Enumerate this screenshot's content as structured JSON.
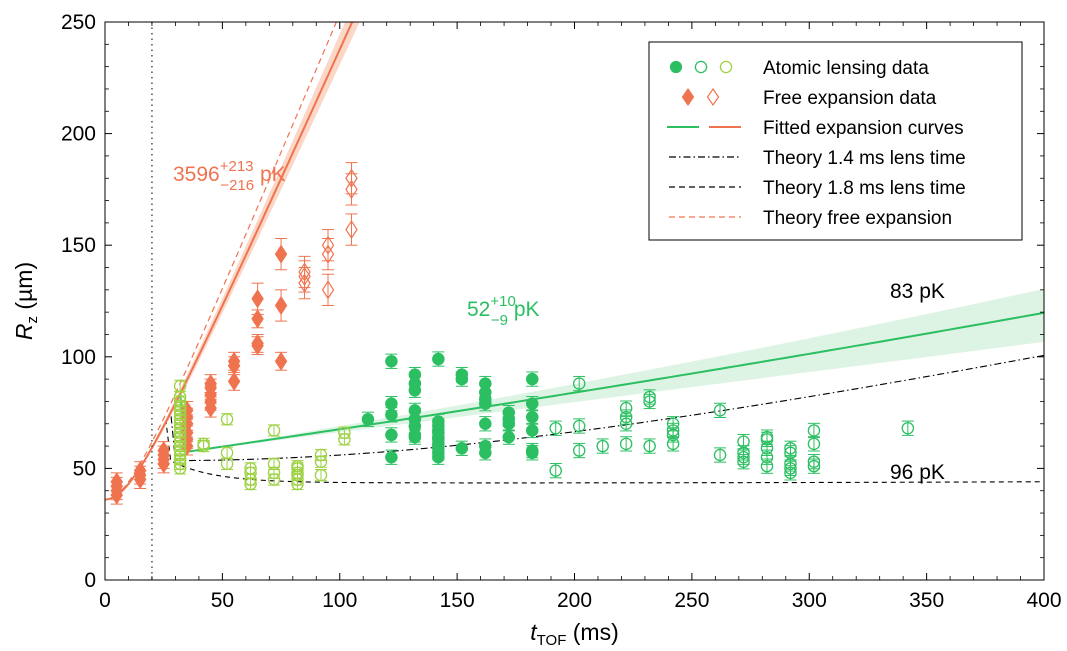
{
  "chart_data": {
    "type": "scatter",
    "xlabel": {
      "main": "t",
      "sub": "TOF",
      "unit": " (ms)"
    },
    "ylabel": {
      "main": "R",
      "sub": "z",
      "unit": " (µm)"
    },
    "xlim": [
      0,
      400
    ],
    "ylim": [
      0,
      250
    ],
    "xticks": [
      0,
      50,
      100,
      150,
      200,
      250,
      300,
      350,
      400
    ],
    "yticks": [
      0,
      50,
      100,
      150,
      200,
      250
    ],
    "lens_time_marker_x": 20,
    "grid": false,
    "legend_position": "top-right",
    "colors": {
      "free": "#f0734f",
      "free_band": "#f9cdb8",
      "lens": "#2bbf62",
      "lens_light": "#9ed244",
      "lens_band": "#d9f2e0",
      "theory": "#000000"
    },
    "legend": [
      {
        "key": "atomic",
        "label": "Atomic lensing data"
      },
      {
        "key": "free",
        "label": "Free expansion data"
      },
      {
        "key": "fit",
        "label": "Fitted expansion curves"
      },
      {
        "key": "th14",
        "label": "Theory 1.4 ms lens time"
      },
      {
        "key": "th18",
        "label": "Theory 1.8 ms lens time"
      },
      {
        "key": "thfree",
        "label": "Theory free expansion"
      }
    ],
    "annotations": {
      "free_temp": {
        "base": "3596",
        "sup": "+213",
        "sub": "−216",
        "unit": " pK"
      },
      "lens_temp": {
        "base": "52",
        "sup": "+10",
        "sub": "−9",
        "unit": " pK"
      },
      "t83": "83 pK",
      "t96": "96 pK"
    },
    "series": [
      {
        "name": "Free expansion data",
        "marker": "diamond-filled",
        "points": [
          [
            5,
            38
          ],
          [
            5,
            40
          ],
          [
            5,
            42
          ],
          [
            5,
            44
          ],
          [
            15,
            45
          ],
          [
            15,
            47
          ],
          [
            15,
            49
          ],
          [
            25,
            52
          ],
          [
            25,
            54
          ],
          [
            25,
            56
          ],
          [
            25,
            58
          ],
          [
            35,
            60
          ],
          [
            35,
            63
          ],
          [
            35,
            66
          ],
          [
            35,
            70
          ],
          [
            35,
            73
          ],
          [
            35,
            76
          ],
          [
            45,
            77
          ],
          [
            45,
            80
          ],
          [
            45,
            83
          ],
          [
            45,
            86
          ],
          [
            45,
            88
          ],
          [
            55,
            89
          ],
          [
            55,
            96
          ],
          [
            55,
            98
          ],
          [
            65,
            105
          ],
          [
            65,
            106
          ],
          [
            65,
            117
          ],
          [
            65,
            126
          ],
          [
            75,
            98
          ],
          [
            75,
            123
          ],
          [
            75,
            146
          ]
        ]
      },
      {
        "name": "Free expansion data",
        "marker": "diamond-open",
        "points": [
          [
            85,
            133
          ],
          [
            85,
            136
          ],
          [
            85,
            138
          ],
          [
            95,
            130
          ],
          [
            95,
            146
          ],
          [
            95,
            150
          ],
          [
            105,
            157
          ],
          [
            105,
            175
          ],
          [
            105,
            180
          ]
        ]
      },
      {
        "name": "Atomic lensing data",
        "marker": "circle-filled",
        "points": [
          [
            112,
            72
          ],
          [
            122,
            55
          ],
          [
            122,
            65
          ],
          [
            122,
            74
          ],
          [
            122,
            79
          ],
          [
            122,
            98
          ],
          [
            132,
            64
          ],
          [
            132,
            65
          ],
          [
            132,
            69
          ],
          [
            132,
            72
          ],
          [
            132,
            76
          ],
          [
            132,
            85
          ],
          [
            132,
            88
          ],
          [
            132,
            92
          ],
          [
            142,
            55
          ],
          [
            142,
            57
          ],
          [
            142,
            59
          ],
          [
            142,
            60
          ],
          [
            142,
            61
          ],
          [
            142,
            63
          ],
          [
            142,
            64
          ],
          [
            142,
            66
          ],
          [
            142,
            67
          ],
          [
            142,
            69
          ],
          [
            142,
            71
          ],
          [
            142,
            99
          ],
          [
            152,
            59
          ],
          [
            152,
            90
          ],
          [
            152,
            92
          ],
          [
            162,
            57
          ],
          [
            162,
            60
          ],
          [
            162,
            70
          ],
          [
            162,
            79
          ],
          [
            162,
            81
          ],
          [
            162,
            84
          ],
          [
            162,
            88
          ],
          [
            172,
            64
          ],
          [
            172,
            70
          ],
          [
            172,
            72
          ],
          [
            172,
            75
          ],
          [
            182,
            57
          ],
          [
            182,
            58
          ],
          [
            182,
            67
          ],
          [
            182,
            73
          ],
          [
            182,
            79
          ],
          [
            182,
            90
          ]
        ]
      },
      {
        "name": "Atomic lensing data",
        "marker": "circle-open",
        "points": [
          [
            192,
            49
          ],
          [
            192,
            68
          ],
          [
            202,
            58
          ],
          [
            202,
            69
          ],
          [
            202,
            88
          ],
          [
            212,
            60
          ],
          [
            222,
            61
          ],
          [
            222,
            70
          ],
          [
            222,
            73
          ],
          [
            222,
            77
          ],
          [
            232,
            60
          ],
          [
            232,
            80
          ],
          [
            232,
            82
          ],
          [
            242,
            61
          ],
          [
            242,
            65
          ],
          [
            242,
            67
          ],
          [
            242,
            70
          ],
          [
            262,
            56
          ],
          [
            262,
            76
          ],
          [
            272,
            53
          ],
          [
            272,
            55
          ],
          [
            272,
            57
          ],
          [
            272,
            62
          ],
          [
            282,
            51
          ],
          [
            282,
            55
          ],
          [
            282,
            59
          ],
          [
            282,
            63
          ],
          [
            282,
            64
          ],
          [
            292,
            48
          ],
          [
            292,
            50
          ],
          [
            292,
            52
          ],
          [
            292,
            57
          ],
          [
            292,
            59
          ],
          [
            302,
            51
          ],
          [
            302,
            53
          ],
          [
            302,
            61
          ],
          [
            302,
            67
          ],
          [
            342,
            68
          ]
        ]
      },
      {
        "name": "Atomic lensing data",
        "marker": "circle-open-light",
        "points": [
          [
            32,
            50
          ],
          [
            32,
            52
          ],
          [
            32,
            54
          ],
          [
            32,
            56
          ],
          [
            32,
            58
          ],
          [
            32,
            60
          ],
          [
            32,
            62
          ],
          [
            32,
            64
          ],
          [
            32,
            66
          ],
          [
            32,
            68
          ],
          [
            32,
            70
          ],
          [
            32,
            72
          ],
          [
            32,
            74
          ],
          [
            32,
            76
          ],
          [
            32,
            78
          ],
          [
            32,
            80
          ],
          [
            32,
            82
          ],
          [
            32,
            87
          ],
          [
            42,
            60
          ],
          [
            42,
            61
          ],
          [
            52,
            52
          ],
          [
            52,
            57
          ],
          [
            52,
            72
          ],
          [
            62,
            43
          ],
          [
            62,
            45
          ],
          [
            62,
            48
          ],
          [
            62,
            50
          ],
          [
            72,
            45
          ],
          [
            72,
            48
          ],
          [
            72,
            52
          ],
          [
            72,
            67
          ],
          [
            82,
            43
          ],
          [
            82,
            45
          ],
          [
            82,
            47
          ],
          [
            82,
            48
          ],
          [
            82,
            50
          ],
          [
            82,
            51
          ],
          [
            92,
            47
          ],
          [
            92,
            53
          ],
          [
            92,
            56
          ],
          [
            102,
            63
          ],
          [
            102,
            66
          ]
        ]
      }
    ]
  }
}
